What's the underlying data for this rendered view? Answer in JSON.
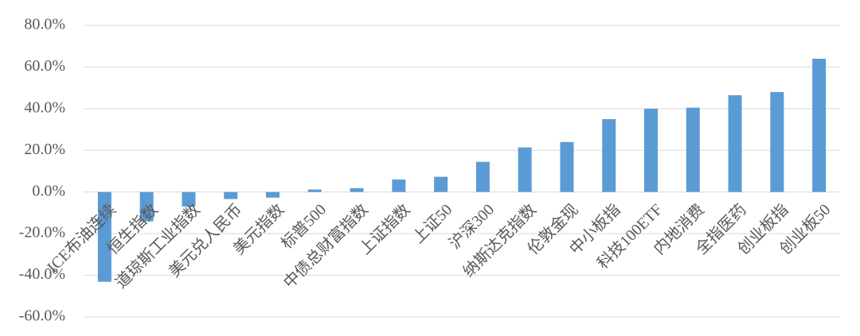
{
  "chart_data": {
    "type": "bar",
    "categories": [
      "ICE布油连续",
      "恒生指数",
      "道琼斯工业指数",
      "美元兑人民币",
      "美元指数",
      "标普500",
      "中债总财富指数",
      "上证指数",
      "上证50",
      "沪深300",
      "纳斯达克指数",
      "伦敦金现",
      "中小板指",
      "科技100ETF",
      "内地消费",
      "全指医药",
      "创业板指",
      "创业板50"
    ],
    "values": [
      -43.1,
      -14.1,
      -7,
      -3.4,
      -2.7,
      1.2,
      1.8,
      6,
      7.3,
      14.5,
      21.4,
      24,
      35,
      40,
      40.5,
      46.5,
      48,
      64
    ],
    "color": "#5b9bd5",
    "ylim": [
      -60,
      80
    ],
    "yticks": [
      {
        "value": -60,
        "label": "-60.0%"
      },
      {
        "value": -40,
        "label": "-40.0%"
      },
      {
        "value": -20,
        "label": "-20.0%"
      },
      {
        "value": 0,
        "label": "0.0%"
      },
      {
        "value": 20,
        "label": "20.0%"
      },
      {
        "value": 40,
        "label": "40.0%"
      },
      {
        "value": 60,
        "label": "60.0%"
      },
      {
        "value": 80,
        "label": "80.0%"
      }
    ],
    "grid": true
  }
}
